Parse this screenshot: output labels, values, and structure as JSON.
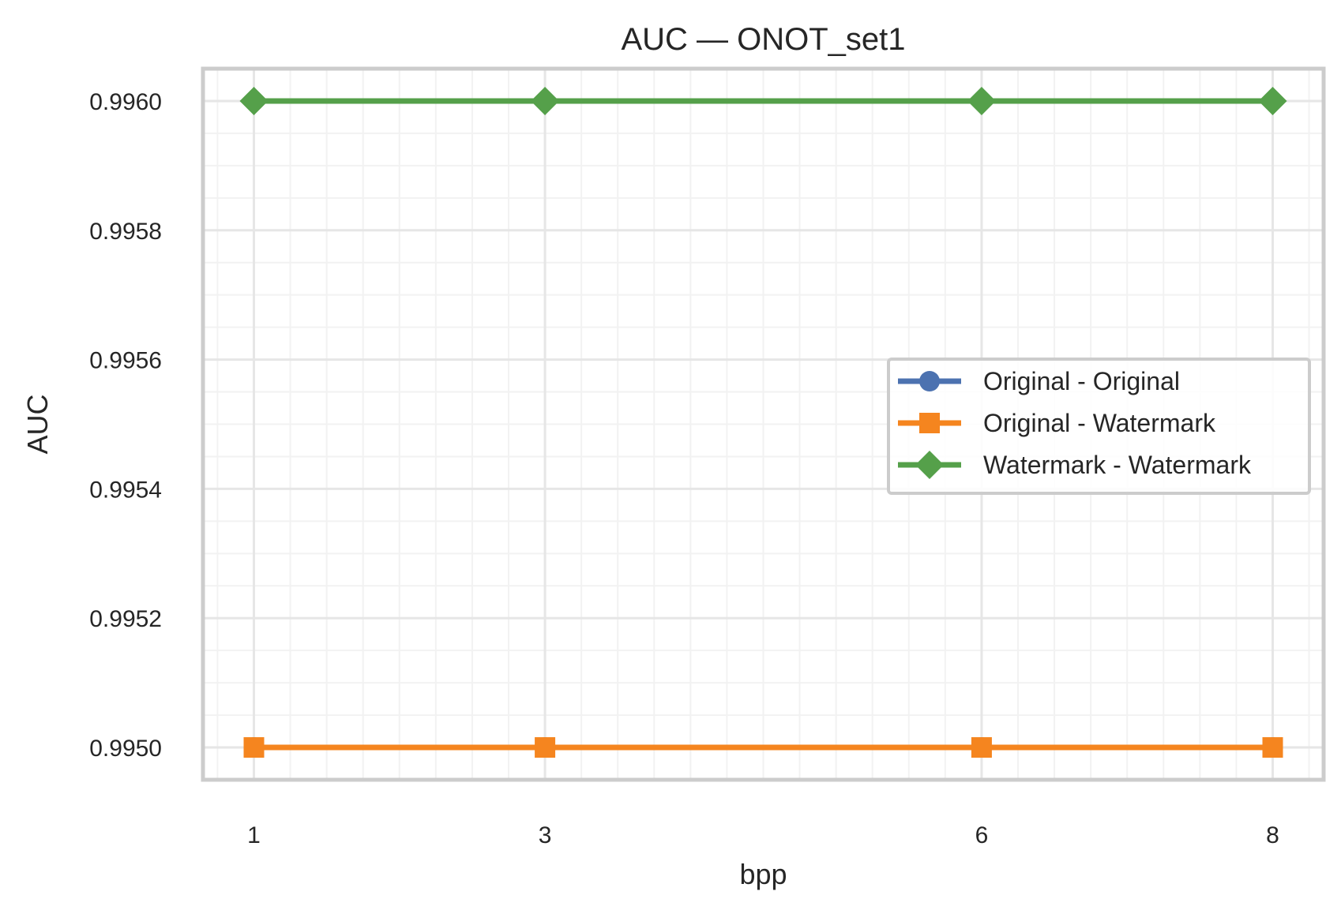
{
  "chart_data": {
    "type": "line",
    "title": "AUC — ONOT_set1",
    "xlabel": "bpp",
    "ylabel": "AUC",
    "x": [
      1,
      3,
      6,
      8
    ],
    "x_tick_labels": [
      "1",
      "3",
      "6",
      "8"
    ],
    "xlim": [
      0.65,
      8.35
    ],
    "ylim": [
      0.99495,
      0.99605
    ],
    "y_ticks": [
      0.995,
      0.9952,
      0.9954,
      0.9956,
      0.9958,
      0.996
    ],
    "y_tick_labels": [
      "0.9950",
      "0.9952",
      "0.9954",
      "0.9956",
      "0.9958",
      "0.9960"
    ],
    "grid": true,
    "minor_grid": true,
    "legend_position": "center-right",
    "series": [
      {
        "name": "Original - Original",
        "values": [
          0.995,
          0.995,
          0.995,
          0.995
        ],
        "color": "#4c72b0",
        "marker": "circle"
      },
      {
        "name": "Original - Watermark",
        "values": [
          0.995,
          0.995,
          0.995,
          0.995
        ],
        "color": "#f5851f",
        "marker": "square"
      },
      {
        "name": "Watermark - Watermark",
        "values": [
          0.996,
          0.996,
          0.996,
          0.996
        ],
        "color": "#55a04a",
        "marker": "diamond"
      }
    ]
  }
}
